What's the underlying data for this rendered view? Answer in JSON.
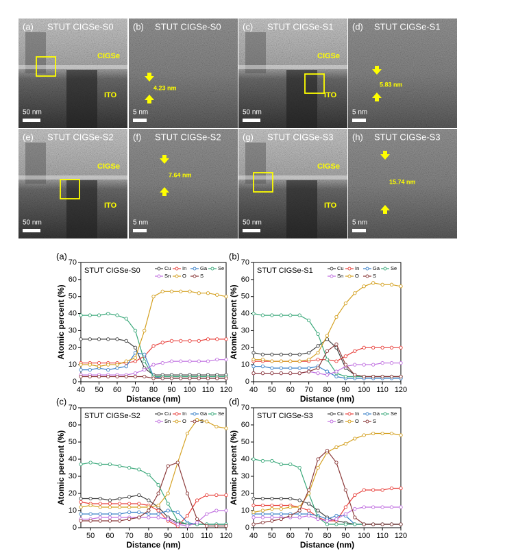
{
  "images": [
    {
      "panel": "(a)",
      "title": "STUT CIGSe-S0",
      "labels": [
        "CIGSe",
        "ITO"
      ],
      "scale": "50 nm"
    },
    {
      "panel": "(b)",
      "title": "STUT CIGSe-S0",
      "measure": "4.23 nm",
      "scale": "5 nm"
    },
    {
      "panel": "(c)",
      "title": "STUT CIGSe-S1",
      "labels": [
        "CIGSe",
        "ITO"
      ],
      "scale": "50 nm"
    },
    {
      "panel": "(d)",
      "title": "STUT CIGSe-S1",
      "measure": "5.83 nm",
      "scale": "5 nm"
    },
    {
      "panel": "(e)",
      "title": "STUT CIGSe-S2",
      "labels": [
        "CIGSe",
        "ITO"
      ],
      "scale": "50 nm"
    },
    {
      "panel": "(f)",
      "title": "STUT CIGSe-S2",
      "measure": "7.64 nm",
      "scale": "5 nm"
    },
    {
      "panel": "(g)",
      "title": "STUT CIGSe-S3",
      "labels": [
        "CIGSe",
        "ITO"
      ],
      "scale": "50 nm"
    },
    {
      "panel": "(h)",
      "title": "STUT CIGSe-S3",
      "measure": "15.74 nm",
      "scale": "5 nm"
    }
  ],
  "chart_data": [
    {
      "type": "line",
      "panel": "(a)",
      "title": "STUT CIGSe-S0",
      "x_label": "Distance (nm)",
      "y_label": "Atomic percent (%)",
      "xlim": [
        40,
        120
      ],
      "xticks": [
        40,
        50,
        60,
        70,
        80,
        90,
        100,
        110,
        120
      ],
      "ylim": [
        0,
        70
      ],
      "yticks": [
        0,
        10,
        20,
        30,
        40,
        50,
        60,
        70
      ],
      "x": [
        40,
        45,
        50,
        55,
        60,
        65,
        70,
        75,
        80,
        85,
        90,
        95,
        100,
        105,
        110,
        115,
        120
      ],
      "series": [
        {
          "name": "Cu",
          "color": "#404040",
          "values": [
            25,
            25,
            25,
            25,
            25,
            24,
            20,
            8,
            4,
            4,
            4,
            4,
            4,
            4,
            4,
            4,
            4
          ]
        },
        {
          "name": "In",
          "color": "#e8413c",
          "values": [
            11,
            11,
            11,
            11,
            11,
            11,
            12,
            15,
            21,
            23,
            24,
            24,
            24,
            24,
            25,
            25,
            25
          ]
        },
        {
          "name": "Ga",
          "color": "#3a80c8",
          "values": [
            7,
            7,
            8,
            7,
            8,
            9,
            17,
            16,
            3,
            2,
            2,
            2,
            2,
            2,
            2,
            2,
            2
          ]
        },
        {
          "name": "Se",
          "color": "#3aa87a",
          "values": [
            39,
            39,
            39,
            40,
            39,
            37,
            30,
            12,
            3,
            3,
            3,
            3,
            3,
            3,
            3,
            3,
            3
          ]
        },
        {
          "name": "Sn",
          "color": "#c070e0",
          "values": [
            4,
            4,
            4,
            4,
            4,
            4,
            5,
            7,
            10,
            11,
            12,
            12,
            12,
            12,
            12,
            13,
            13
          ]
        },
        {
          "name": "O",
          "color": "#d4a020",
          "values": [
            10,
            10,
            9,
            10,
            10,
            12,
            14,
            30,
            50,
            53,
            53,
            53,
            53,
            52,
            52,
            51,
            50
          ]
        },
        {
          "name": "S",
          "color": "#8b3a3a",
          "values": [
            3,
            3,
            3,
            3,
            3,
            3,
            3,
            3,
            2,
            2,
            2,
            2,
            2,
            2,
            2,
            2,
            2
          ]
        }
      ]
    },
    {
      "type": "line",
      "panel": "(b)",
      "title": "STUT CIGSe-S1",
      "x_label": "Distance (nm)",
      "y_label": "Atomic percent (%)",
      "xlim": [
        40,
        120
      ],
      "xticks": [
        40,
        50,
        60,
        70,
        80,
        90,
        100,
        110,
        120
      ],
      "ylim": [
        0,
        70
      ],
      "yticks": [
        0,
        10,
        20,
        30,
        40,
        50,
        60,
        70
      ],
      "x": [
        40,
        45,
        50,
        55,
        60,
        65,
        70,
        75,
        80,
        85,
        90,
        95,
        100,
        105,
        110,
        115,
        120
      ],
      "series": [
        {
          "name": "Cu",
          "color": "#404040",
          "values": [
            17,
            16,
            16,
            16,
            16,
            16,
            17,
            21,
            25,
            20,
            8,
            4,
            3,
            3,
            3,
            3,
            3
          ]
        },
        {
          "name": "In",
          "color": "#e8413c",
          "values": [
            12,
            12,
            12,
            12,
            12,
            12,
            12,
            13,
            13,
            12,
            15,
            18,
            20,
            20,
            20,
            20,
            20
          ]
        },
        {
          "name": "Ga",
          "color": "#3a80c8",
          "values": [
            9,
            9,
            8,
            8,
            8,
            8,
            8,
            9,
            6,
            3,
            2,
            2,
            2,
            2,
            2,
            2,
            2
          ]
        },
        {
          "name": "Se",
          "color": "#3aa87a",
          "values": [
            40,
            39,
            39,
            39,
            39,
            39,
            36,
            28,
            13,
            5,
            3,
            3,
            3,
            3,
            3,
            3,
            3
          ]
        },
        {
          "name": "Sn",
          "color": "#c070e0",
          "values": [
            5,
            5,
            5,
            5,
            5,
            5,
            6,
            5,
            4,
            6,
            9,
            10,
            10,
            10,
            11,
            11,
            11
          ]
        },
        {
          "name": "O",
          "color": "#d4a020",
          "values": [
            13,
            13,
            12,
            12,
            12,
            12,
            13,
            17,
            27,
            38,
            46,
            52,
            56,
            58,
            57,
            57,
            56
          ]
        },
        {
          "name": "S",
          "color": "#8b3a3a",
          "values": [
            5,
            5,
            5,
            5,
            5,
            5,
            6,
            8,
            18,
            22,
            10,
            4,
            3,
            3,
            3,
            3,
            3
          ]
        }
      ]
    },
    {
      "type": "line",
      "panel": "(c)",
      "title": "STUT CIGSe-S2",
      "x_label": "Distance (nm)",
      "y_label": "Atomic percent (%)",
      "xlim": [
        45,
        120
      ],
      "xticks": [
        50,
        60,
        70,
        80,
        90,
        100,
        110,
        120
      ],
      "ylim": [
        0,
        70
      ],
      "yticks": [
        0,
        10,
        20,
        30,
        40,
        50,
        60,
        70
      ],
      "x": [
        45,
        50,
        55,
        60,
        65,
        70,
        75,
        80,
        85,
        90,
        95,
        100,
        105,
        110,
        115,
        120
      ],
      "series": [
        {
          "name": "Cu",
          "color": "#404040",
          "values": [
            17,
            17,
            17,
            16,
            17,
            18,
            19,
            16,
            12,
            6,
            3,
            2,
            2,
            2,
            2,
            2
          ]
        },
        {
          "name": "In",
          "color": "#e8413c",
          "values": [
            15,
            14,
            14,
            14,
            14,
            14,
            14,
            13,
            10,
            4,
            1,
            7,
            16,
            19,
            19,
            19
          ]
        },
        {
          "name": "Ga",
          "color": "#3a80c8",
          "values": [
            8,
            8,
            8,
            8,
            8,
            9,
            9,
            8,
            8,
            10,
            9,
            3,
            2,
            2,
            2,
            2
          ]
        },
        {
          "name": "Se",
          "color": "#3aa87a",
          "values": [
            37,
            38,
            37,
            37,
            36,
            35,
            34,
            31,
            25,
            14,
            4,
            2,
            2,
            2,
            2,
            2
          ]
        },
        {
          "name": "Sn",
          "color": "#c070e0",
          "values": [
            5,
            5,
            6,
            6,
            6,
            6,
            6,
            6,
            6,
            5,
            2,
            1,
            3,
            8,
            10,
            10
          ]
        },
        {
          "name": "O",
          "color": "#d4a020",
          "values": [
            12,
            13,
            12,
            12,
            12,
            12,
            12,
            12,
            13,
            20,
            38,
            55,
            63,
            62,
            59,
            58
          ]
        },
        {
          "name": "S",
          "color": "#8b3a3a",
          "values": [
            4,
            4,
            4,
            4,
            4,
            5,
            6,
            10,
            20,
            36,
            38,
            20,
            5,
            1,
            1,
            1
          ]
        }
      ]
    },
    {
      "type": "line",
      "panel": "(d)",
      "title": "STUT CIGSe-S3",
      "x_label": "Distance (nm)",
      "y_label": "Atomic percent (%)",
      "xlim": [
        40,
        120
      ],
      "xticks": [
        40,
        50,
        60,
        70,
        80,
        90,
        100,
        110,
        120
      ],
      "ylim": [
        0,
        70
      ],
      "yticks": [
        0,
        10,
        20,
        30,
        40,
        50,
        60,
        70
      ],
      "x": [
        40,
        45,
        50,
        55,
        60,
        65,
        70,
        75,
        80,
        85,
        90,
        95,
        100,
        105,
        110,
        115,
        120
      ],
      "series": [
        {
          "name": "Cu",
          "color": "#404040",
          "values": [
            17,
            17,
            17,
            17,
            17,
            16,
            14,
            10,
            6,
            4,
            3,
            2,
            2,
            2,
            2,
            2,
            2
          ]
        },
        {
          "name": "In",
          "color": "#e8413c",
          "values": [
            13,
            13,
            13,
            13,
            13,
            12,
            10,
            6,
            4,
            4,
            12,
            19,
            22,
            22,
            22,
            23,
            23
          ]
        },
        {
          "name": "Ga",
          "color": "#3a80c8",
          "values": [
            8,
            8,
            8,
            8,
            8,
            8,
            8,
            7,
            5,
            7,
            7,
            2,
            2,
            2,
            2,
            2,
            2
          ]
        },
        {
          "name": "Se",
          "color": "#3aa87a",
          "values": [
            40,
            39,
            39,
            37,
            37,
            35,
            20,
            6,
            2,
            2,
            2,
            2,
            2,
            2,
            2,
            2,
            2
          ]
        },
        {
          "name": "Sn",
          "color": "#c070e0",
          "values": [
            6,
            6,
            6,
            6,
            6,
            6,
            7,
            5,
            4,
            5,
            8,
            11,
            12,
            12,
            12,
            12,
            12
          ]
        },
        {
          "name": "O",
          "color": "#d4a020",
          "values": [
            9,
            10,
            11,
            11,
            12,
            12,
            20,
            35,
            44,
            47,
            49,
            52,
            54,
            55,
            55,
            55,
            54
          ]
        },
        {
          "name": "S",
          "color": "#8b3a3a",
          "values": [
            2,
            3,
            4,
            5,
            7,
            10,
            22,
            40,
            45,
            38,
            22,
            6,
            2,
            2,
            2,
            2,
            2
          ]
        }
      ]
    }
  ]
}
